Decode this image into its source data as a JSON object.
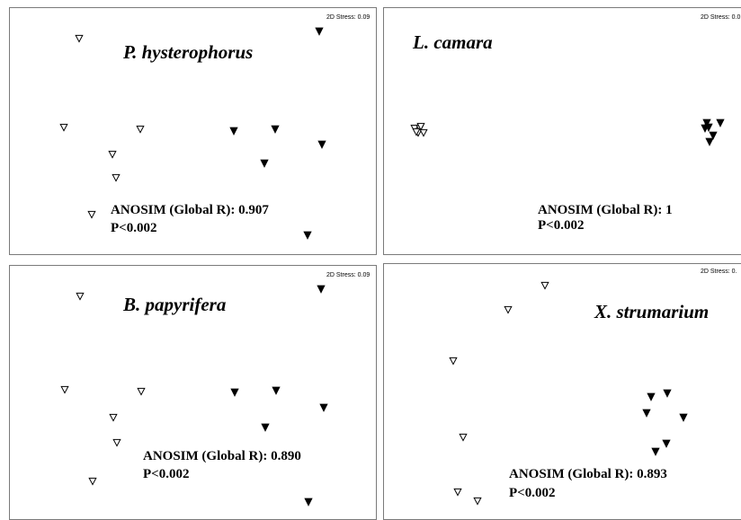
{
  "chart_data": [
    {
      "type": "scatter",
      "title": "P. hysterophorus",
      "stress_label": "2D Stress: 0.09",
      "anosim_label": "ANOSIM (Global R): 0.907",
      "p_label": "P<0.002",
      "xlim": [
        0,
        409
      ],
      "ylim": [
        0,
        276
      ],
      "series": [
        {
          "marker": "open-triangle",
          "points": [
            [
              77,
              34
            ],
            [
              60,
              133
            ],
            [
              145,
              135
            ],
            [
              114,
              163
            ],
            [
              118,
              189
            ],
            [
              91,
              230
            ]
          ]
        },
        {
          "marker": "filled-triangle",
          "points": [
            [
              344,
              26
            ],
            [
              249,
              137
            ],
            [
              295,
              135
            ],
            [
              347,
              152
            ],
            [
              283,
              173
            ],
            [
              331,
              253
            ]
          ]
        }
      ]
    },
    {
      "type": "scatter",
      "title": "L. camara",
      "stress_label": "2D Stress: 0.0",
      "anosim_label": "ANOSIM (Global R): 1",
      "p_label": "P<0.002",
      "xlim": [
        0,
        400
      ],
      "ylim": [
        0,
        276
      ],
      "series": [
        {
          "marker": "open-triangle",
          "points": [
            [
              34,
              134
            ],
            [
              40,
              134
            ],
            [
              38,
              139
            ],
            [
              44,
              139
            ],
            [
              41,
              132
            ],
            [
              36,
              138
            ]
          ]
        },
        {
          "marker": "filled-triangle",
          "points": [
            [
              359,
              128
            ],
            [
              374,
              128
            ],
            [
              361,
              133
            ],
            [
              357,
              134
            ],
            [
              366,
              142
            ],
            [
              362,
              149
            ]
          ]
        }
      ]
    },
    {
      "type": "scatter",
      "title": "B. papyrifera",
      "stress_label": "2D Stress: 0.09",
      "anosim_label": "ANOSIM (Global R): 0.890",
      "p_label": "P<0.002",
      "xlim": [
        0,
        409
      ],
      "ylim": [
        0,
        284
      ],
      "series": [
        {
          "marker": "open-triangle",
          "points": [
            [
              78,
              34
            ],
            [
              61,
              138
            ],
            [
              146,
              140
            ],
            [
              115,
              169
            ],
            [
              119,
              197
            ],
            [
              92,
              240
            ]
          ]
        },
        {
          "marker": "filled-triangle",
          "points": [
            [
              346,
              26
            ],
            [
              250,
              141
            ],
            [
              296,
              139
            ],
            [
              349,
              158
            ],
            [
              284,
              180
            ],
            [
              332,
              263
            ]
          ]
        }
      ]
    },
    {
      "type": "scatter",
      "title": "X. strumarium",
      "stress_label": "2D Stress: 0.",
      "anosim_label": "ANOSIM (Global R): 0.893",
      "p_label": "P<0.002",
      "xlim": [
        0,
        400
      ],
      "ylim": [
        0,
        286
      ],
      "series": [
        {
          "marker": "open-triangle",
          "points": [
            [
              179,
              24
            ],
            [
              138,
              51
            ],
            [
              77,
              108
            ],
            [
              88,
              193
            ],
            [
              82,
              254
            ],
            [
              104,
              264
            ]
          ]
        },
        {
          "marker": "filled-triangle",
          "points": [
            [
              297,
              148
            ],
            [
              315,
              144
            ],
            [
              292,
              166
            ],
            [
              333,
              171
            ],
            [
              314,
              200
            ],
            [
              302,
              209
            ]
          ]
        }
      ]
    }
  ]
}
